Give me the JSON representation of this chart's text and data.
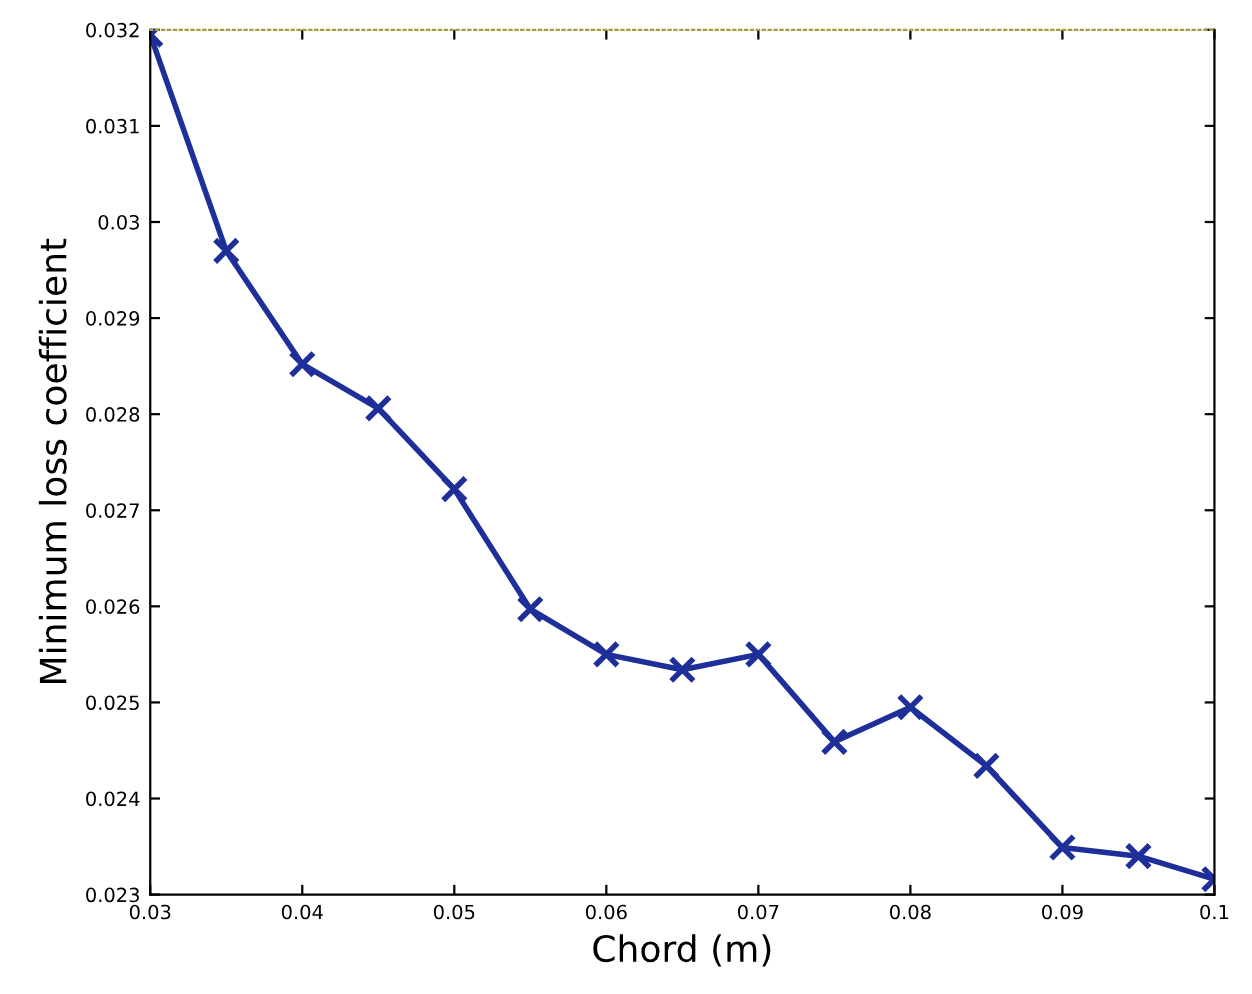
{
  "chart_data": {
    "type": "line",
    "xlabel": "Chord (m)",
    "ylabel": "Minimum loss coefficient",
    "x": [
      0.03,
      0.035,
      0.04,
      0.045,
      0.05,
      0.055,
      0.06,
      0.065,
      0.07,
      0.075,
      0.08,
      0.085,
      0.09,
      0.095,
      0.1
    ],
    "series": [
      {
        "color": "#1f2f9a",
        "values": [
          0.03195,
          0.0297,
          0.02852,
          0.02806,
          0.02722,
          0.02597,
          0.0255,
          0.02534,
          0.0255,
          0.02459,
          0.02495,
          0.02434,
          0.02349,
          0.0234,
          0.02316
        ]
      }
    ],
    "xlim": [
      0.03,
      0.1
    ],
    "ylim": [
      0.023,
      0.032
    ],
    "xticks": [
      0.03,
      0.04,
      0.05,
      0.06,
      0.07,
      0.08,
      0.09,
      0.1
    ],
    "yticks": [
      0.023,
      0.024,
      0.025,
      0.026,
      0.027,
      0.028,
      0.029,
      0.03,
      0.031,
      0.032
    ],
    "marker": "cross",
    "line_style": "solid",
    "grid": false,
    "legend": false
  }
}
